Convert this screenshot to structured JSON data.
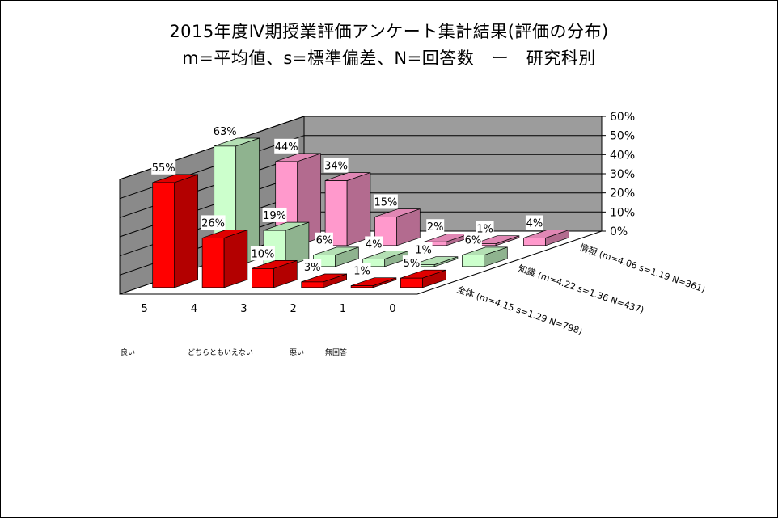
{
  "title_line1": "2015年度Ⅳ期授業評価アンケート集計結果(評価の分布)",
  "title_line2": "m=平均値、s=標準偏差、N=回答数　ー　研究科別",
  "notes": {
    "good": "良い",
    "neutral": "どちらともいえない",
    "bad": "悪い",
    "no_answer": "無回答"
  },
  "colors": {
    "back_wall": "#9c9c9c",
    "side_wall": "#8a8a8a",
    "floor": "#ffffff",
    "zentai": "#ff0000",
    "chishiki": "#ccffcc",
    "joho": "#ff99cc"
  },
  "chart_data": {
    "type": "bar",
    "subtype": "3d-clustered-depth",
    "title": "2015年度Ⅳ期授業評価アンケート集計結果(評価の分布)",
    "categories": [
      "5",
      "4",
      "3",
      "2",
      "1",
      "0"
    ],
    "yticks": [
      "0%",
      "10%",
      "20%",
      "30%",
      "40%",
      "50%",
      "60%"
    ],
    "ylim": [
      0,
      60
    ],
    "series": [
      {
        "name": "全体 (m=4.15 s=1.29 N=798)",
        "values": [
          55,
          26,
          10,
          3,
          1,
          5
        ],
        "labels": [
          "55%",
          "26%",
          "10%",
          "3%",
          "1%",
          "5%"
        ]
      },
      {
        "name": "知識 (m=4.22 s=1.36 N=437)",
        "values": [
          63,
          19,
          6,
          4,
          1,
          6
        ],
        "labels": [
          "63%",
          "19%",
          "6%",
          "4%",
          "1%",
          "6%"
        ]
      },
      {
        "name": "情報 (m=4.06 s=1.19 N=361)",
        "values": [
          44,
          34,
          15,
          2,
          1,
          4
        ],
        "labels": [
          "44%",
          "34%",
          "15%",
          "2%",
          "1%",
          "4%"
        ]
      }
    ]
  }
}
